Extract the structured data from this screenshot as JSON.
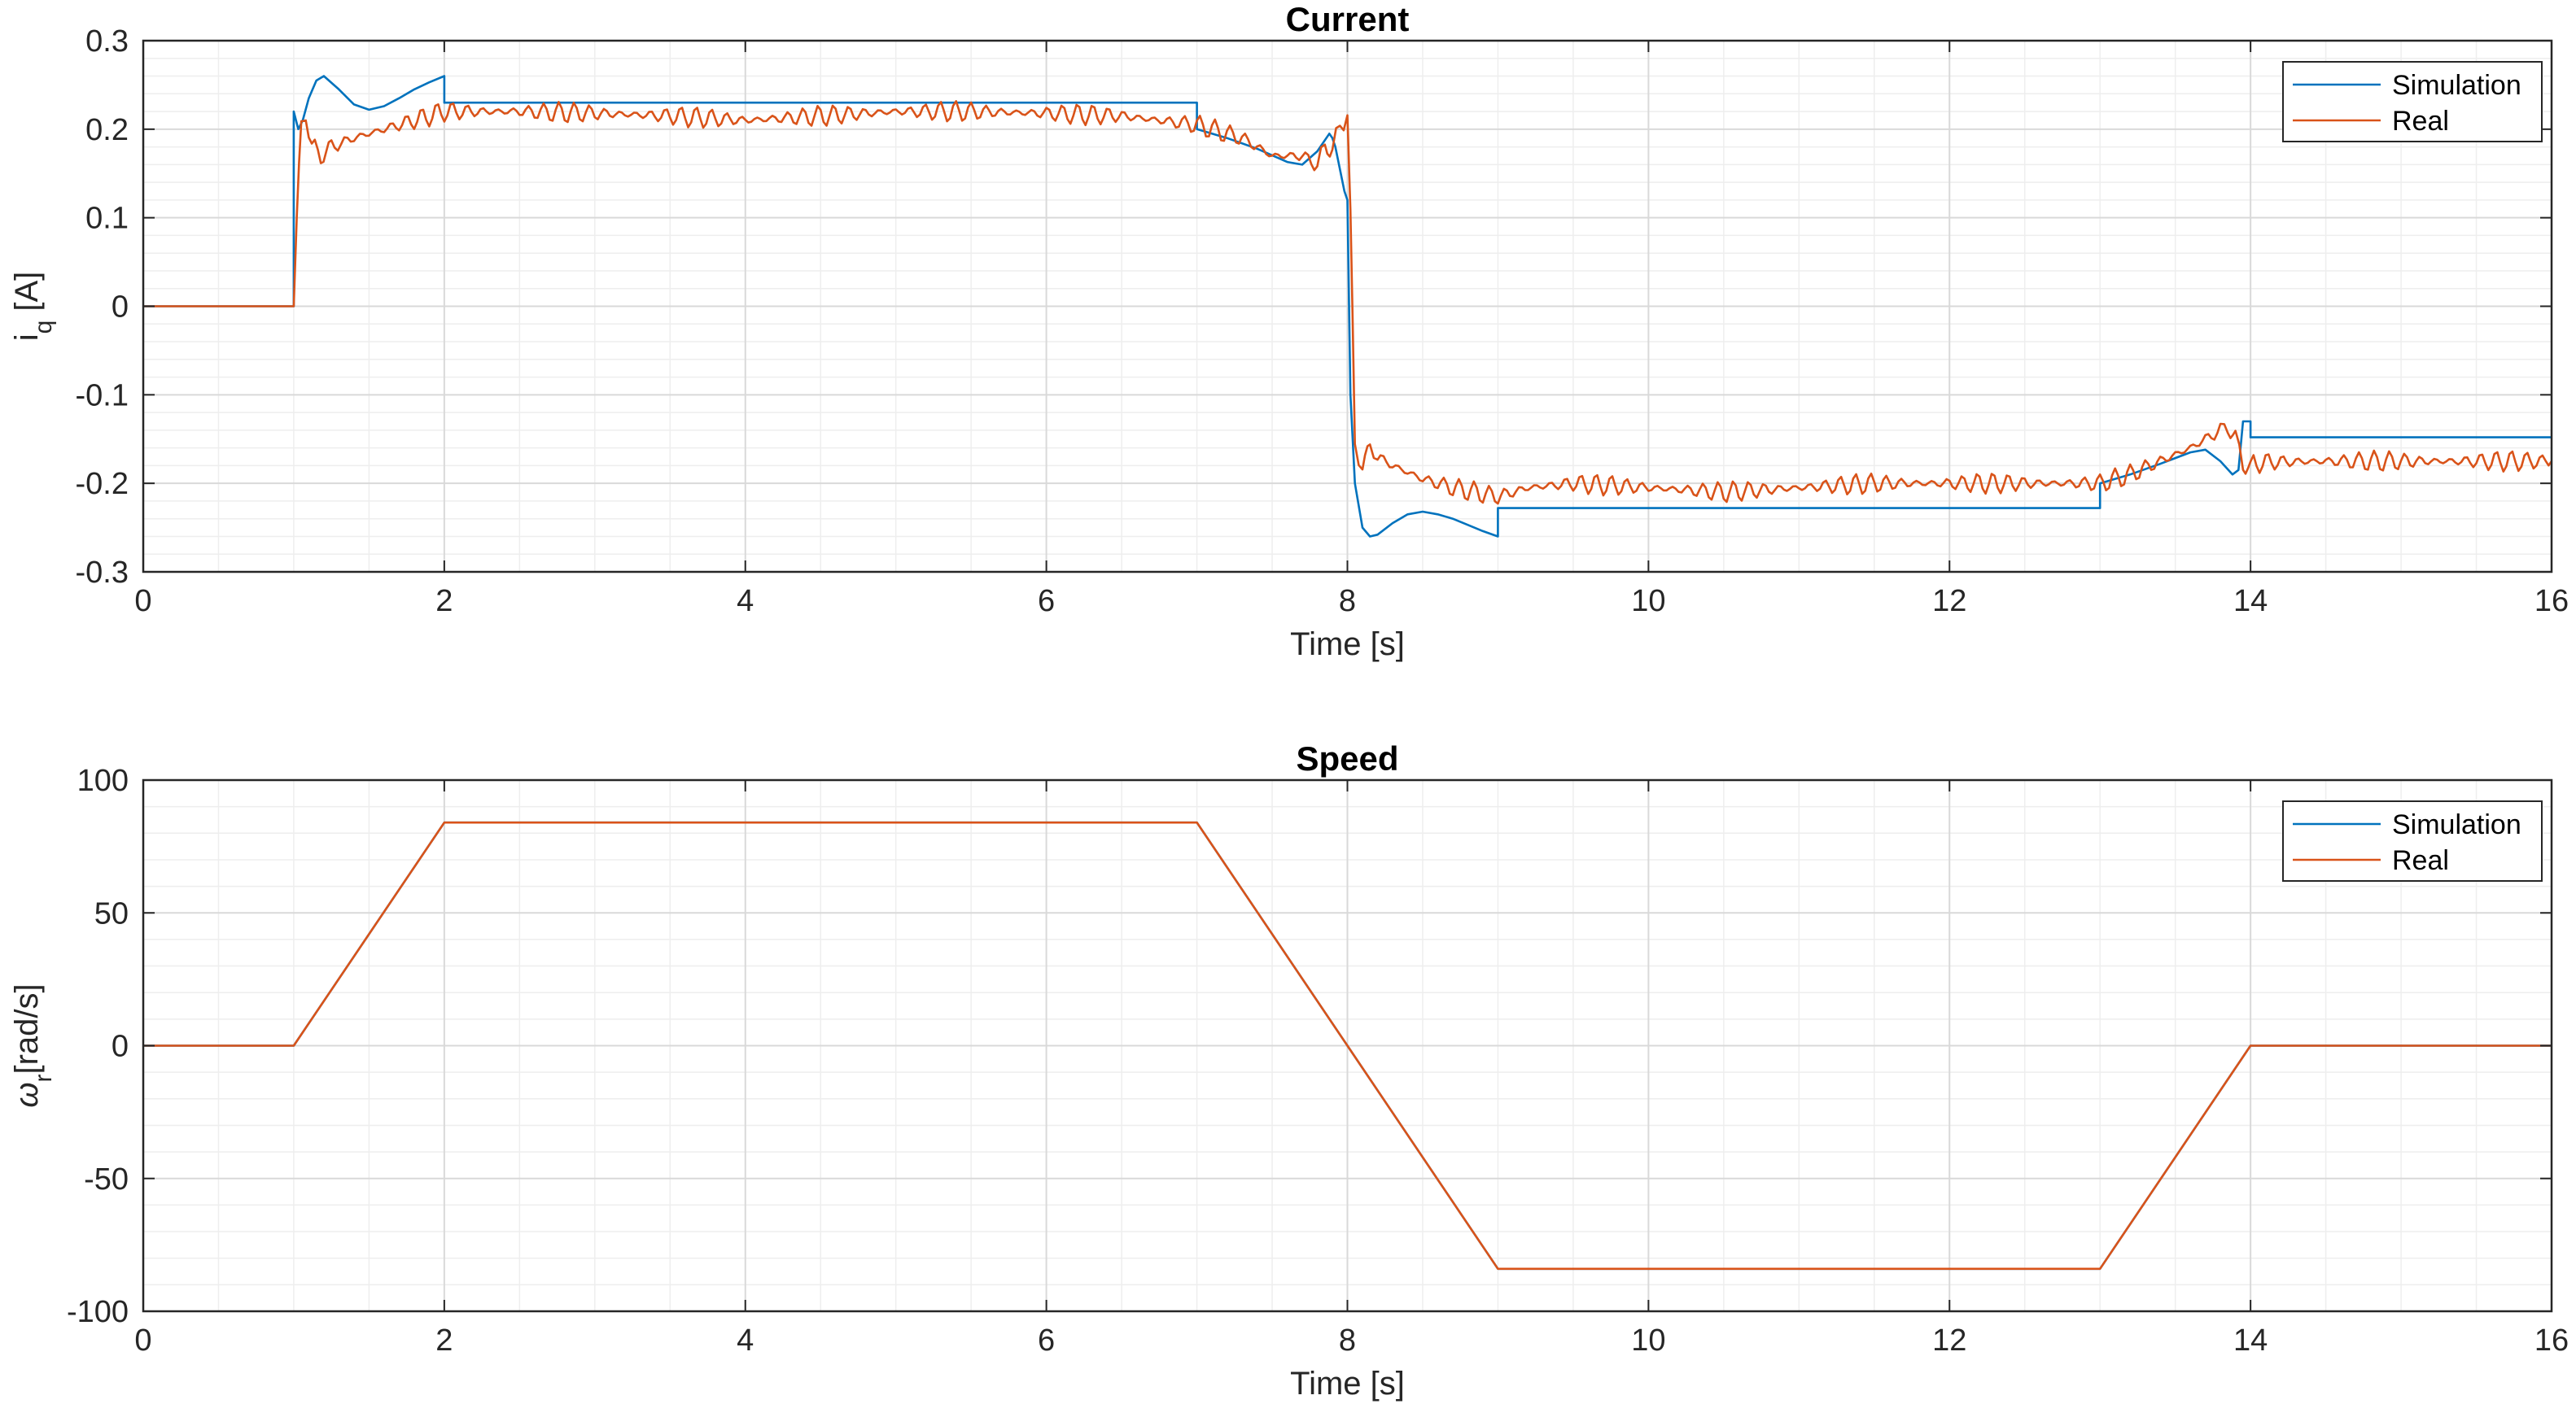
{
  "colors": {
    "simulation": "#0072BD",
    "real": "#D95319",
    "axis": "#262626",
    "grid_major": "#d9d9d9",
    "grid_minor": "#eeeeee"
  },
  "chart_data": [
    {
      "type": "line",
      "title": "Current",
      "xlabel": "Time [s]",
      "ylabel_main": "i",
      "ylabel_sub": "q",
      "ylabel_unit": " [A]",
      "xlim": [
        0,
        16
      ],
      "ylim": [
        -0.3,
        0.3
      ],
      "xticks": [
        0,
        2,
        4,
        6,
        8,
        10,
        12,
        14,
        16
      ],
      "xtick_labels": [
        "0",
        "2",
        "4",
        "6",
        "8",
        "10",
        "12",
        "14",
        "16"
      ],
      "yticks": [
        -0.3,
        -0.2,
        -0.1,
        0,
        0.1,
        0.2,
        0.3
      ],
      "ytick_labels": [
        "-0.3",
        "-0.2",
        "-0.1",
        "0",
        "0.1",
        "0.2",
        "0.3"
      ],
      "grid": true,
      "minor_grid": true,
      "legend": "top-right",
      "series": [
        {
          "name": "Simulation",
          "x": [
            0,
            1.0,
            1.0,
            1.03,
            1.06,
            1.1,
            1.15,
            1.2,
            1.3,
            1.4,
            1.5,
            1.6,
            1.7,
            1.8,
            1.9,
            2.0,
            2.0,
            7.0,
            7.0,
            7.2,
            7.4,
            7.6,
            7.7,
            7.8,
            7.88,
            7.9,
            7.92,
            7.98,
            8.0,
            8.02,
            8.05,
            8.1,
            8.15,
            8.2,
            8.3,
            8.4,
            8.5,
            8.6,
            8.7,
            8.8,
            8.9,
            9.0,
            9.0,
            13.0,
            13.0,
            13.2,
            13.4,
            13.6,
            13.7,
            13.8,
            13.88,
            13.92,
            13.95,
            14.0,
            14.0,
            16.0
          ],
          "y": [
            0,
            0,
            0.22,
            0.2,
            0.21,
            0.235,
            0.255,
            0.26,
            0.245,
            0.228,
            0.222,
            0.226,
            0.235,
            0.245,
            0.253,
            0.26,
            0.23,
            0.23,
            0.2,
            0.19,
            0.178,
            0.163,
            0.16,
            0.175,
            0.195,
            0.19,
            0.18,
            0.13,
            0.12,
            -0.1,
            -0.2,
            -0.25,
            -0.26,
            -0.258,
            -0.245,
            -0.235,
            -0.232,
            -0.235,
            -0.24,
            -0.247,
            -0.254,
            -0.26,
            -0.228,
            -0.228,
            -0.2,
            -0.19,
            -0.178,
            -0.165,
            -0.162,
            -0.175,
            -0.19,
            -0.185,
            -0.13,
            -0.13,
            -0.148,
            -0.148
          ]
        },
        {
          "name": "Real",
          "x": [
            0,
            1.0,
            1.02,
            1.05,
            1.08,
            1.12,
            1.18,
            1.25,
            1.4,
            1.6,
            1.8,
            2.0,
            2.5,
            3.0,
            3.5,
            4.0,
            4.5,
            5.0,
            5.5,
            6.0,
            6.5,
            7.0,
            7.1,
            7.3,
            7.5,
            7.7,
            7.8,
            7.85,
            7.9,
            7.95,
            8.0,
            8.02,
            8.05,
            8.1,
            8.15,
            8.2,
            8.3,
            8.5,
            8.7,
            9.0,
            9.2,
            9.5,
            10.0,
            10.5,
            11.0,
            11.5,
            12.0,
            12.5,
            13.0,
            13.2,
            13.4,
            13.6,
            13.7,
            13.8,
            13.85,
            13.9,
            13.95,
            14.0,
            14.02,
            14.1,
            14.5,
            15.0,
            16.0
          ],
          "y": [
            0,
            0,
            0.1,
            0.2,
            0.22,
            0.18,
            0.17,
            0.18,
            0.19,
            0.2,
            0.21,
            0.22,
            0.22,
            0.218,
            0.215,
            0.21,
            0.215,
            0.22,
            0.22,
            0.218,
            0.215,
            0.205,
            0.2,
            0.19,
            0.17,
            0.17,
            0.16,
            0.18,
            0.18,
            0.2,
            0.22,
            0.1,
            -0.16,
            -0.18,
            -0.16,
            -0.17,
            -0.18,
            -0.195,
            -0.205,
            -0.215,
            -0.205,
            -0.2,
            -0.205,
            -0.21,
            -0.205,
            -0.2,
            -0.2,
            -0.2,
            -0.2,
            -0.19,
            -0.175,
            -0.16,
            -0.15,
            -0.14,
            -0.135,
            -0.15,
            -0.175,
            -0.185,
            -0.178,
            -0.176,
            -0.175,
            -0.175,
            -0.175
          ],
          "ripple": 0.012
        }
      ]
    },
    {
      "type": "line",
      "title": "Speed",
      "xlabel": "Time [s]",
      "ylabel_main": "ω",
      "ylabel_sub": "r",
      "ylabel_unit": "[rad/s]",
      "xlim": [
        0,
        16
      ],
      "ylim": [
        -100,
        100
      ],
      "xticks": [
        0,
        2,
        4,
        6,
        8,
        10,
        12,
        14,
        16
      ],
      "xtick_labels": [
        "0",
        "2",
        "4",
        "6",
        "8",
        "10",
        "12",
        "14",
        "16"
      ],
      "yticks": [
        -100,
        -50,
        0,
        50,
        100
      ],
      "ytick_labels": [
        "-100",
        "-50",
        "0",
        "50",
        "100"
      ],
      "grid": true,
      "minor_grid": true,
      "legend": "top-right",
      "series": [
        {
          "name": "Simulation",
          "x": [
            0,
            1,
            2,
            7,
            8,
            9,
            13,
            14,
            16
          ],
          "y": [
            0,
            0,
            84,
            84,
            0,
            -84,
            -84,
            0,
            0
          ]
        },
        {
          "name": "Real",
          "x": [
            0,
            1,
            2,
            7,
            8,
            9,
            13,
            14,
            16
          ],
          "y": [
            0,
            0,
            84,
            84,
            0,
            -84,
            -84,
            0,
            0
          ]
        }
      ]
    }
  ]
}
